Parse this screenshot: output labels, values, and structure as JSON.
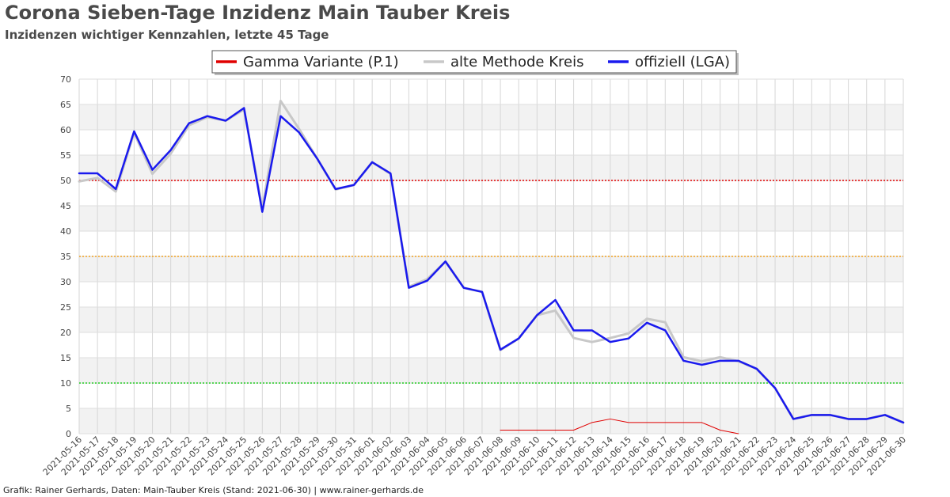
{
  "title": "Corona Sieben-Tage Inzidenz Main Tauber Kreis",
  "subtitle": "Inzidenzen wichtiger Kennzahlen, letzte 45 Tage",
  "footer": "Grafik: Rainer Gerhards, Daten: Main-Tauber Kreis (Stand: 2021-06-30) | www.rainer-gerhards.de",
  "chart_data": {
    "type": "line",
    "title": "Corona Sieben-Tage Inzidenz Main Tauber Kreis",
    "subtitle": "Inzidenzen wichtiger Kennzahlen, letzte 45 Tage",
    "xlabel": "",
    "ylabel": "",
    "ylim": [
      0,
      70
    ],
    "yticks": [
      0,
      5,
      10,
      15,
      20,
      25,
      30,
      35,
      40,
      45,
      50,
      55,
      60,
      65,
      70
    ],
    "grid": true,
    "legend_position": "top-center",
    "x": [
      "2021-05-16",
      "2021-05-17",
      "2021-05-18",
      "2021-05-19",
      "2021-05-20",
      "2021-05-21",
      "2021-05-22",
      "2021-05-23",
      "2021-05-24",
      "2021-05-25",
      "2021-05-26",
      "2021-05-27",
      "2021-05-28",
      "2021-05-29",
      "2021-05-30",
      "2021-05-31",
      "2021-06-01",
      "2021-06-02",
      "2021-06-03",
      "2021-06-04",
      "2021-06-05",
      "2021-06-06",
      "2021-06-07",
      "2021-06-08",
      "2021-06-09",
      "2021-06-10",
      "2021-06-11",
      "2021-06-12",
      "2021-06-13",
      "2021-06-14",
      "2021-06-15",
      "2021-06-16",
      "2021-06-17",
      "2021-06-18",
      "2021-06-19",
      "2021-06-20",
      "2021-06-21",
      "2021-06-22",
      "2021-06-23",
      "2021-06-24",
      "2021-06-25",
      "2021-06-26",
      "2021-06-27",
      "2021-06-28",
      "2021-06-29",
      "2021-06-30"
    ],
    "series": [
      {
        "name": "Gamma Variante (P.1)",
        "color": "#e00000",
        "width": 1,
        "values": [
          null,
          null,
          null,
          null,
          null,
          null,
          null,
          null,
          null,
          null,
          null,
          null,
          null,
          null,
          null,
          null,
          null,
          null,
          null,
          null,
          null,
          null,
          null,
          0.7,
          0.7,
          0.7,
          0.7,
          0.7,
          2.2,
          2.9,
          2.2,
          2.2,
          2.2,
          2.2,
          2.2,
          0.7,
          0,
          null,
          null,
          null,
          null,
          null,
          null,
          null,
          null,
          null
        ]
      },
      {
        "name": "alte Methode Kreis",
        "color": "#c8c8c8",
        "width": 3,
        "values": [
          49.8,
          50.5,
          47.8,
          59.4,
          51.3,
          55.3,
          60.9,
          62.5,
          61.8,
          64.0,
          44.5,
          65.7,
          60.2,
          54.3,
          48.2,
          49.1,
          53.6,
          51.3,
          29.0,
          30.5,
          34.0,
          28.8,
          28.0,
          16.5,
          18.8,
          23.4,
          24.3,
          18.9,
          18.1,
          18.9,
          19.8,
          22.7,
          22.0,
          15.1,
          14.3,
          15.1,
          14.3,
          12.8,
          9.0,
          2.9,
          3.7,
          3.7,
          2.9,
          2.9,
          3.7,
          2.2
        ]
      },
      {
        "name": "offiziell (LGA)",
        "color": "#1a1aee",
        "width": 2.5,
        "values": [
          51.4,
          51.4,
          48.3,
          59.7,
          52.1,
          56.0,
          61.3,
          62.7,
          61.8,
          64.3,
          43.8,
          62.7,
          59.5,
          54.3,
          48.3,
          49.1,
          53.6,
          51.4,
          28.8,
          30.2,
          34.0,
          28.8,
          28.0,
          16.6,
          18.8,
          23.4,
          26.4,
          20.4,
          20.4,
          18.1,
          18.8,
          21.9,
          20.4,
          14.4,
          13.6,
          14.4,
          14.4,
          12.8,
          9.0,
          2.9,
          3.7,
          3.7,
          2.9,
          2.9,
          3.7,
          2.2
        ]
      }
    ],
    "reference_lines": [
      {
        "value": 50,
        "color": "#e00000"
      },
      {
        "value": 35,
        "color": "#f0a020"
      },
      {
        "value": 10,
        "color": "#22cc22"
      }
    ]
  }
}
